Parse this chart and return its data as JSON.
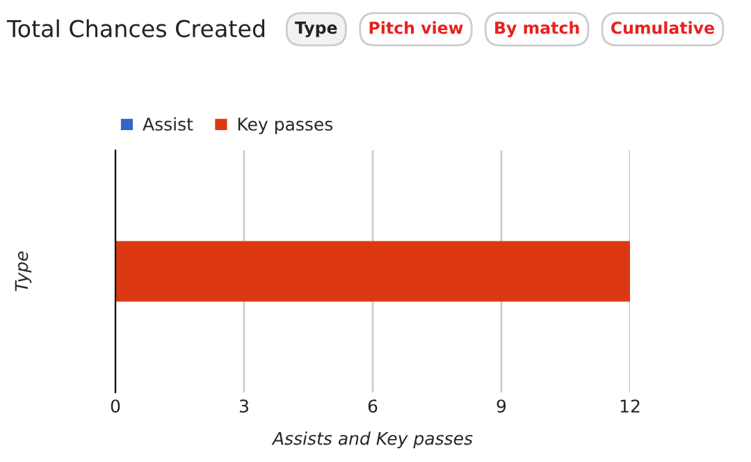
{
  "chart_data": {
    "type": "bar",
    "title": "Total Chances Created",
    "orientation": "horizontal",
    "stacked": true,
    "categories": [
      null
    ],
    "series": [
      {
        "name": "Assist",
        "color": "#3366cc",
        "values": [
          0
        ]
      },
      {
        "name": "Key passes",
        "color": "#dc3912",
        "values": [
          12
        ]
      }
    ],
    "xlim": [
      0,
      12
    ],
    "xticks": [
      0,
      3,
      6,
      9,
      12
    ],
    "xlabel": "Assists and Key passes",
    "ylabel": "Type",
    "grid": "x",
    "legend": "top left",
    "annotations": [
      "Type",
      "Pitch view",
      "By match",
      "Cumulative"
    ]
  }
}
